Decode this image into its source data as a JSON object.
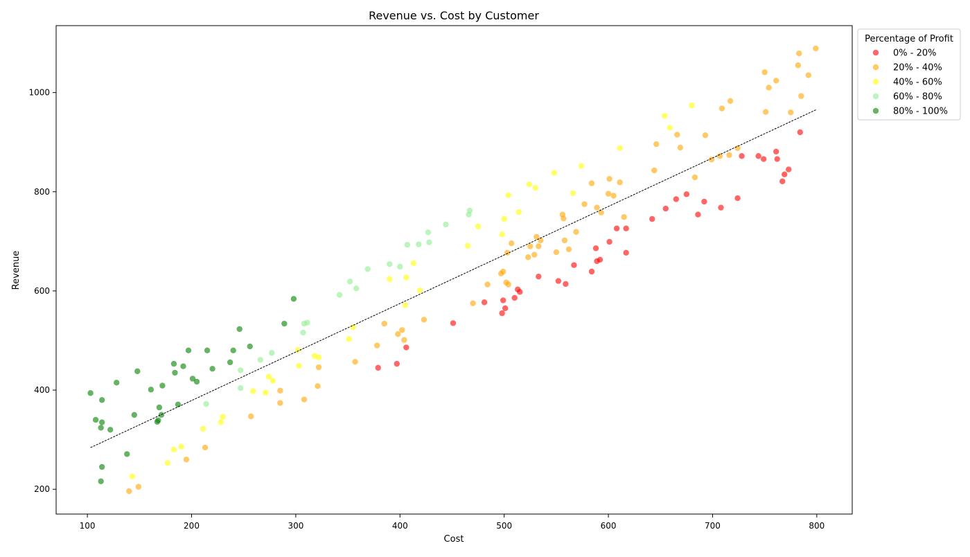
{
  "chart_data": {
    "type": "scatter",
    "title": "Revenue vs. Cost by Customer",
    "xlabel": "Cost",
    "ylabel": "Revenue",
    "xlim": [
      70,
      834
    ],
    "ylim": [
      150,
      1135
    ],
    "xticks": [
      100,
      200,
      300,
      400,
      500,
      600,
      700,
      800
    ],
    "yticks": [
      200,
      400,
      600,
      800,
      1000
    ],
    "grid": false,
    "legend": {
      "title": "Percentage of Profit",
      "placement": "outside-top-right"
    },
    "trendline": {
      "type": "linear fit",
      "style": "dashed",
      "color": "#000000",
      "points": [
        [
          103,
          284
        ],
        [
          800,
          966
        ]
      ]
    },
    "series": [
      {
        "name": "0% - 20%",
        "color": "#ff0000",
        "points": [
          [
            379,
            445
          ],
          [
            397,
            453
          ],
          [
            406,
            486
          ],
          [
            451,
            535
          ],
          [
            481,
            577
          ],
          [
            498,
            555
          ],
          [
            499,
            581
          ],
          [
            501,
            565
          ],
          [
            510,
            586
          ],
          [
            513,
            603
          ],
          [
            515,
            598
          ],
          [
            533,
            629
          ],
          [
            552,
            620
          ],
          [
            559,
            614
          ],
          [
            567,
            652
          ],
          [
            584,
            639
          ],
          [
            588,
            686
          ],
          [
            589,
            660
          ],
          [
            592,
            663
          ],
          [
            601,
            699
          ],
          [
            608,
            726
          ],
          [
            617,
            726
          ],
          [
            617,
            677
          ],
          [
            642,
            745
          ],
          [
            655,
            766
          ],
          [
            665,
            785
          ],
          [
            675,
            795
          ],
          [
            686,
            754
          ],
          [
            692,
            780
          ],
          [
            708,
            768
          ],
          [
            724,
            787
          ],
          [
            728,
            872
          ],
          [
            744,
            872
          ],
          [
            749,
            866
          ],
          [
            761,
            881
          ],
          [
            762,
            866
          ],
          [
            767,
            821
          ],
          [
            769,
            835
          ],
          [
            773,
            845
          ],
          [
            784,
            920
          ]
        ]
      },
      {
        "name": "20% - 40%",
        "color": "#ffa500",
        "points": [
          [
            140,
            196
          ],
          [
            149,
            205
          ],
          [
            195,
            260
          ],
          [
            213,
            284
          ],
          [
            257,
            347
          ],
          [
            285,
            374
          ],
          [
            285,
            399
          ],
          [
            308,
            381
          ],
          [
            321,
            408
          ],
          [
            322,
            446
          ],
          [
            357,
            457
          ],
          [
            378,
            490
          ],
          [
            385,
            534
          ],
          [
            398,
            513
          ],
          [
            402,
            521
          ],
          [
            404,
            501
          ],
          [
            423,
            542
          ],
          [
            470,
            575
          ],
          [
            484,
            613
          ],
          [
            497,
            635
          ],
          [
            499,
            639
          ],
          [
            502,
            617
          ],
          [
            503,
            677
          ],
          [
            504,
            613
          ],
          [
            507,
            696
          ],
          [
            523,
            668
          ],
          [
            525,
            690
          ],
          [
            529,
            673
          ],
          [
            531,
            709
          ],
          [
            533,
            690
          ],
          [
            535,
            702
          ],
          [
            550,
            678
          ],
          [
            556,
            754
          ],
          [
            557,
            746
          ],
          [
            558,
            702
          ],
          [
            562,
            684
          ],
          [
            569,
            719
          ],
          [
            577,
            775
          ],
          [
            584,
            817
          ],
          [
            589,
            768
          ],
          [
            593,
            758
          ],
          [
            600,
            796
          ],
          [
            601,
            826
          ],
          [
            605,
            792
          ],
          [
            611,
            819
          ],
          [
            615,
            749
          ],
          [
            644,
            843
          ],
          [
            646,
            896
          ],
          [
            666,
            915
          ],
          [
            669,
            889
          ],
          [
            683,
            829
          ],
          [
            693,
            914
          ],
          [
            699,
            865
          ],
          [
            707,
            872
          ],
          [
            709,
            968
          ],
          [
            716,
            874
          ],
          [
            717,
            983
          ],
          [
            724,
            888
          ],
          [
            750,
            1041
          ],
          [
            751,
            961
          ],
          [
            754,
            1010
          ],
          [
            761,
            1024
          ],
          [
            775,
            960
          ],
          [
            782,
            1055
          ],
          [
            783,
            1079
          ],
          [
            785,
            993
          ],
          [
            792,
            1035
          ],
          [
            799,
            1089
          ]
        ]
      },
      {
        "name": "40% - 60%",
        "color": "#ffff00",
        "points": [
          [
            143,
            226
          ],
          [
            177,
            253
          ],
          [
            183,
            280
          ],
          [
            190,
            286
          ],
          [
            211,
            322
          ],
          [
            228,
            335
          ],
          [
            230,
            346
          ],
          [
            259,
            398
          ],
          [
            271,
            395
          ],
          [
            274,
            427
          ],
          [
            278,
            419
          ],
          [
            302,
            481
          ],
          [
            303,
            449
          ],
          [
            318,
            469
          ],
          [
            322,
            466
          ],
          [
            351,
            503
          ],
          [
            355,
            527
          ],
          [
            390,
            624
          ],
          [
            405,
            571
          ],
          [
            406,
            627
          ],
          [
            413,
            656
          ],
          [
            419,
            601
          ],
          [
            465,
            691
          ],
          [
            475,
            730
          ],
          [
            498,
            714
          ],
          [
            500,
            745
          ],
          [
            504,
            793
          ],
          [
            514,
            759
          ],
          [
            524,
            815
          ],
          [
            530,
            808
          ],
          [
            548,
            838
          ],
          [
            566,
            797
          ],
          [
            574,
            852
          ],
          [
            611,
            888
          ],
          [
            654,
            953
          ],
          [
            659,
            929
          ],
          [
            680,
            974
          ]
        ]
      },
      {
        "name": "60% - 80%",
        "color": "#90ee90",
        "points": [
          [
            214,
            372
          ],
          [
            247,
            404
          ],
          [
            247,
            440
          ],
          [
            266,
            461
          ],
          [
            277,
            475
          ],
          [
            307,
            516
          ],
          [
            308,
            534
          ],
          [
            311,
            536
          ],
          [
            342,
            592
          ],
          [
            352,
            619
          ],
          [
            358,
            605
          ],
          [
            369,
            644
          ],
          [
            390,
            654
          ],
          [
            400,
            649
          ],
          [
            407,
            693
          ],
          [
            418,
            694
          ],
          [
            427,
            718
          ],
          [
            428,
            698
          ],
          [
            444,
            734
          ],
          [
            466,
            754
          ],
          [
            467,
            762
          ]
        ]
      },
      {
        "name": "80% - 100%",
        "color": "#008000",
        "points": [
          [
            103,
            394
          ],
          [
            108,
            340
          ],
          [
            113,
            324
          ],
          [
            113,
            216
          ],
          [
            114,
            245
          ],
          [
            114,
            380
          ],
          [
            114,
            335
          ],
          [
            122,
            320
          ],
          [
            128,
            415
          ],
          [
            138,
            271
          ],
          [
            145,
            350
          ],
          [
            148,
            438
          ],
          [
            161,
            401
          ],
          [
            167,
            336
          ],
          [
            168,
            339
          ],
          [
            169,
            365
          ],
          [
            171,
            350
          ],
          [
            172,
            409
          ],
          [
            183,
            453
          ],
          [
            184,
            435
          ],
          [
            187,
            371
          ],
          [
            192,
            448
          ],
          [
            197,
            480
          ],
          [
            201,
            423
          ],
          [
            205,
            417
          ],
          [
            215,
            480
          ],
          [
            220,
            443
          ],
          [
            237,
            456
          ],
          [
            240,
            480
          ],
          [
            246,
            523
          ],
          [
            256,
            488
          ],
          [
            289,
            534
          ],
          [
            298,
            584
          ]
        ]
      }
    ]
  }
}
